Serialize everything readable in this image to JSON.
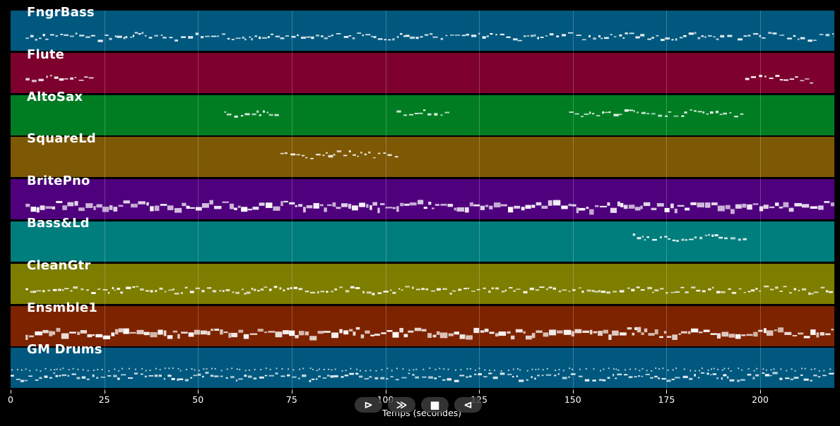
{
  "chart_data": {
    "type": "piano-roll",
    "xlabel": "Temps (secondes)",
    "x_ticks": [
      0,
      25,
      50,
      75,
      100,
      125,
      150,
      175,
      200
    ],
    "xlim": [
      0,
      219
    ],
    "grid": true,
    "tracks": [
      {
        "name": "FngrBass",
        "color": "#00587f",
        "activity": [
          [
            4,
            192
          ],
          [
            194,
            220
          ]
        ]
      },
      {
        "name": "Flute",
        "color": "#7d002d",
        "activity": [
          [
            4,
            22
          ],
          [
            196,
            214
          ]
        ]
      },
      {
        "name": "AltoSax",
        "color": "#007d23",
        "activity": [
          [
            57,
            71
          ],
          [
            103,
            117
          ],
          [
            149,
            195
          ]
        ]
      },
      {
        "name": "SquareLd",
        "color": "#7d5805",
        "activity": [
          [
            72,
            103
          ]
        ]
      },
      {
        "name": "BritePno",
        "color": "#4f007d",
        "activity": [
          [
            4,
            220
          ]
        ]
      },
      {
        "name": "Bass&Ld",
        "color": "#007d7d",
        "activity": [
          [
            166,
            196
          ]
        ]
      },
      {
        "name": "CleanGtr",
        "color": "#7d7d00",
        "activity": [
          [
            4,
            220
          ]
        ]
      },
      {
        "name": "Ensmble1",
        "color": "#7d2300",
        "activity": [
          [
            4,
            220
          ]
        ]
      },
      {
        "name": "GM Drums",
        "color": "#00587f",
        "activity": [
          [
            0,
            220
          ]
        ]
      }
    ]
  },
  "controls": {
    "play": "⊳",
    "forward": "≫",
    "stop": "■",
    "back": "⊲"
  }
}
